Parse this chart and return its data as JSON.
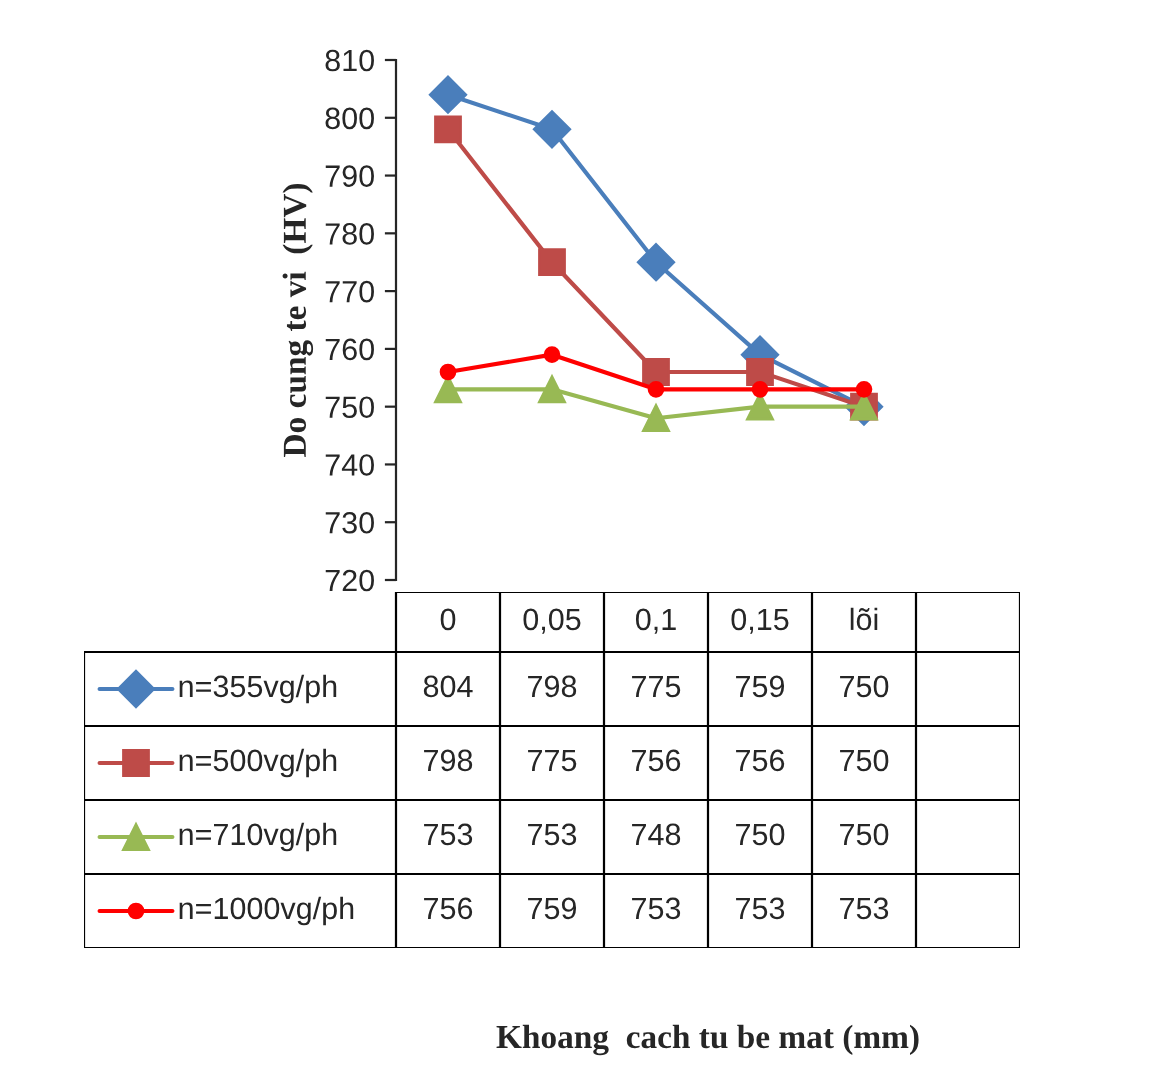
{
  "chart_data": {
    "type": "line",
    "annotations": [
      "Khoang  cach tu be mat (mm)"
    ],
    "ylabel": "Do cung te vi  (HV)",
    "categories": [
      "0",
      "0,05",
      "0,1",
      "0,15",
      "lõi",
      null
    ],
    "ylim": [
      720,
      810
    ],
    "yticks": [
      720,
      730,
      740,
      750,
      760,
      770,
      780,
      790,
      800,
      810
    ],
    "grid": false,
    "legend": "bottom",
    "data_labels": true,
    "line_style": "solid",
    "series": [
      {
        "name": "n=355vg/ph",
        "color": "#4a7ebb",
        "marker": "diamond",
        "values": [
          804,
          798,
          775,
          759,
          750,
          null
        ]
      },
      {
        "name": "n=500vg/ph",
        "color": "#be4b48",
        "marker": "square",
        "values": [
          798,
          775,
          756,
          756,
          750,
          null
        ]
      },
      {
        "name": "n=710vg/ph",
        "color": "#98b954",
        "marker": "triangle",
        "values": [
          753,
          753,
          748,
          750,
          750,
          null
        ]
      },
      {
        "name": "n=1000vg/ph",
        "color": "#ff0000",
        "marker": "circle",
        "values": [
          756,
          759,
          753,
          753,
          753,
          null
        ]
      }
    ]
  }
}
